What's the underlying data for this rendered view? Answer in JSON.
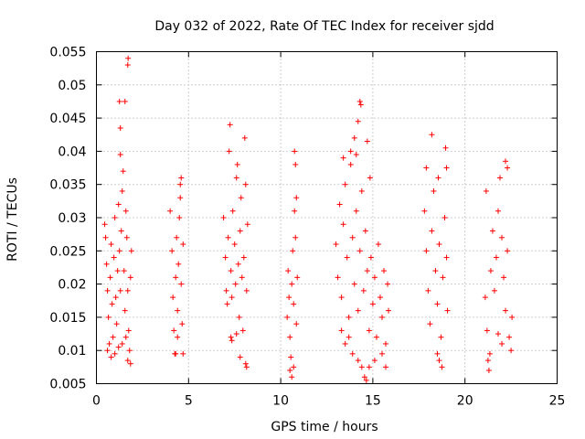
{
  "chart_data": {
    "type": "scatter",
    "title": "Day 032 of 2022, Rate Of TEC Index for receiver sjdd",
    "xlabel": "GPS time / hours",
    "ylabel": "ROTI / TECUs",
    "xlim": [
      0,
      25
    ],
    "ylim": [
      0.005,
      0.055
    ],
    "xticks": [
      0,
      5,
      10,
      15,
      20,
      25
    ],
    "yticks": [
      0.005,
      0.01,
      0.015,
      0.02,
      0.025,
      0.03,
      0.035,
      0.04,
      0.045,
      0.05,
      0.055
    ],
    "xtick_labels": [
      "0",
      "5",
      "10",
      "15",
      "20",
      "25"
    ],
    "ytick_labels": [
      "0.005",
      "0.01",
      "0.015",
      "0.02",
      "0.025",
      "0.03",
      "0.035",
      "0.04",
      "0.045",
      "0.05",
      "0.055"
    ],
    "grid": true,
    "marker": "+",
    "color": "#ff0000",
    "series": [
      {
        "name": "ROTI",
        "points": [
          [
            0.45,
            0.029
          ],
          [
            0.5,
            0.027
          ],
          [
            0.55,
            0.023
          ],
          [
            0.6,
            0.019
          ],
          [
            0.65,
            0.015
          ],
          [
            0.7,
            0.011
          ],
          [
            0.75,
            0.021
          ],
          [
            0.8,
            0.026
          ],
          [
            0.85,
            0.017
          ],
          [
            0.9,
            0.012
          ],
          [
            0.95,
            0.024
          ],
          [
            1.0,
            0.03
          ],
          [
            1.05,
            0.018
          ],
          [
            1.1,
            0.014
          ],
          [
            1.15,
            0.022
          ],
          [
            1.2,
            0.032
          ],
          [
            1.25,
            0.025
          ],
          [
            1.3,
            0.019
          ],
          [
            1.35,
            0.028
          ],
          [
            1.4,
            0.034
          ],
          [
            1.45,
            0.037
          ],
          [
            1.5,
            0.022
          ],
          [
            1.55,
            0.016
          ],
          [
            1.6,
            0.031
          ],
          [
            1.65,
            0.027
          ],
          [
            1.7,
            0.019
          ],
          [
            1.75,
            0.013
          ],
          [
            1.8,
            0.01
          ],
          [
            1.85,
            0.021
          ],
          [
            1.9,
            0.025
          ],
          [
            0.6,
            0.01
          ],
          [
            0.8,
            0.009
          ],
          [
            1.0,
            0.0095
          ],
          [
            1.2,
            0.0105
          ],
          [
            1.4,
            0.011
          ],
          [
            1.6,
            0.012
          ],
          [
            1.7,
            0.0085
          ],
          [
            1.85,
            0.008
          ],
          [
            1.25,
            0.0475
          ],
          [
            1.55,
            0.0475
          ],
          [
            1.7,
            0.053
          ],
          [
            1.72,
            0.054
          ],
          [
            1.3,
            0.0435
          ],
          [
            1.3,
            0.0395
          ],
          [
            4.0,
            0.031
          ],
          [
            4.1,
            0.025
          ],
          [
            4.15,
            0.018
          ],
          [
            4.2,
            0.013
          ],
          [
            4.25,
            0.0095
          ],
          [
            4.3,
            0.021
          ],
          [
            4.35,
            0.027
          ],
          [
            4.4,
            0.016
          ],
          [
            4.45,
            0.023
          ],
          [
            4.5,
            0.03
          ],
          [
            4.55,
            0.035
          ],
          [
            4.6,
            0.02
          ],
          [
            4.65,
            0.014
          ],
          [
            4.7,
            0.026
          ],
          [
            4.4,
            0.012
          ],
          [
            4.3,
            0.0095
          ],
          [
            4.7,
            0.0095
          ],
          [
            4.6,
            0.036
          ],
          [
            4.55,
            0.033
          ],
          [
            6.9,
            0.03
          ],
          [
            7.0,
            0.024
          ],
          [
            7.05,
            0.019
          ],
          [
            7.1,
            0.017
          ],
          [
            7.15,
            0.027
          ],
          [
            7.2,
            0.04
          ],
          [
            7.25,
            0.044
          ],
          [
            7.3,
            0.022
          ],
          [
            7.35,
            0.018
          ],
          [
            7.4,
            0.031
          ],
          [
            7.5,
            0.026
          ],
          [
            7.55,
            0.02
          ],
          [
            7.6,
            0.036
          ],
          [
            7.65,
            0.038
          ],
          [
            7.7,
            0.023
          ],
          [
            7.75,
            0.015
          ],
          [
            7.8,
            0.028
          ],
          [
            7.85,
            0.033
          ],
          [
            7.9,
            0.021
          ],
          [
            7.95,
            0.013
          ],
          [
            8.0,
            0.024
          ],
          [
            8.05,
            0.042
          ],
          [
            8.1,
            0.035
          ],
          [
            8.15,
            0.019
          ],
          [
            8.2,
            0.029
          ],
          [
            7.3,
            0.012
          ],
          [
            7.6,
            0.0125
          ],
          [
            7.8,
            0.009
          ],
          [
            8.1,
            0.008
          ],
          [
            8.15,
            0.0075
          ],
          [
            7.35,
            0.0115
          ],
          [
            10.35,
            0.015
          ],
          [
            10.4,
            0.022
          ],
          [
            10.45,
            0.018
          ],
          [
            10.5,
            0.012
          ],
          [
            10.55,
            0.009
          ],
          [
            10.6,
            0.02
          ],
          [
            10.65,
            0.025
          ],
          [
            10.7,
            0.017
          ],
          [
            10.75,
            0.031
          ],
          [
            10.8,
            0.027
          ],
          [
            10.85,
            0.014
          ],
          [
            10.9,
            0.021
          ],
          [
            10.5,
            0.007
          ],
          [
            10.6,
            0.006
          ],
          [
            10.75,
            0.04
          ],
          [
            10.8,
            0.038
          ],
          [
            10.85,
            0.033
          ],
          [
            10.7,
            0.0075
          ],
          [
            13.0,
            0.026
          ],
          [
            13.1,
            0.021
          ],
          [
            13.2,
            0.032
          ],
          [
            13.3,
            0.018
          ],
          [
            13.4,
            0.029
          ],
          [
            13.5,
            0.035
          ],
          [
            13.6,
            0.024
          ],
          [
            13.7,
            0.015
          ],
          [
            13.8,
            0.038
          ],
          [
            13.9,
            0.027
          ],
          [
            14.0,
            0.02
          ],
          [
            14.1,
            0.031
          ],
          [
            14.2,
            0.016
          ],
          [
            14.3,
            0.025
          ],
          [
            14.4,
            0.034
          ],
          [
            14.5,
            0.019
          ],
          [
            14.6,
            0.028
          ],
          [
            14.7,
            0.022
          ],
          [
            14.8,
            0.013
          ],
          [
            14.9,
            0.024
          ],
          [
            15.0,
            0.017
          ],
          [
            15.1,
            0.021
          ],
          [
            15.2,
            0.012
          ],
          [
            15.3,
            0.026
          ],
          [
            15.4,
            0.018
          ],
          [
            15.5,
            0.015
          ],
          [
            15.6,
            0.022
          ],
          [
            15.7,
            0.011
          ],
          [
            15.8,
            0.02
          ],
          [
            15.85,
            0.016
          ],
          [
            13.3,
            0.013
          ],
          [
            13.5,
            0.011
          ],
          [
            13.7,
            0.012
          ],
          [
            13.9,
            0.0095
          ],
          [
            14.2,
            0.0085
          ],
          [
            14.4,
            0.0075
          ],
          [
            14.55,
            0.006
          ],
          [
            14.65,
            0.0055
          ],
          [
            14.8,
            0.0075
          ],
          [
            15.1,
            0.0085
          ],
          [
            15.5,
            0.0095
          ],
          [
            15.7,
            0.0075
          ],
          [
            13.4,
            0.039
          ],
          [
            13.8,
            0.04
          ],
          [
            14.0,
            0.042
          ],
          [
            14.1,
            0.0395
          ],
          [
            14.3,
            0.0475
          ],
          [
            14.35,
            0.047
          ],
          [
            14.7,
            0.0415
          ],
          [
            14.85,
            0.036
          ],
          [
            14.2,
            0.0445
          ],
          [
            17.8,
            0.031
          ],
          [
            17.9,
            0.025
          ],
          [
            18.0,
            0.019
          ],
          [
            18.1,
            0.014
          ],
          [
            18.2,
            0.028
          ],
          [
            18.3,
            0.034
          ],
          [
            18.4,
            0.022
          ],
          [
            18.5,
            0.017
          ],
          [
            18.6,
            0.026
          ],
          [
            18.7,
            0.012
          ],
          [
            18.8,
            0.021
          ],
          [
            18.9,
            0.03
          ],
          [
            19.0,
            0.024
          ],
          [
            19.05,
            0.016
          ],
          [
            18.5,
            0.0095
          ],
          [
            18.6,
            0.0085
          ],
          [
            18.75,
            0.0075
          ],
          [
            18.2,
            0.0425
          ],
          [
            18.95,
            0.0405
          ],
          [
            19.0,
            0.0375
          ],
          [
            17.9,
            0.0375
          ],
          [
            18.55,
            0.036
          ],
          [
            21.1,
            0.018
          ],
          [
            21.2,
            0.013
          ],
          [
            21.25,
            0.0085
          ],
          [
            21.3,
            0.007
          ],
          [
            21.35,
            0.0095
          ],
          [
            21.4,
            0.022
          ],
          [
            21.5,
            0.028
          ],
          [
            21.6,
            0.019
          ],
          [
            21.7,
            0.024
          ],
          [
            21.8,
            0.031
          ],
          [
            21.9,
            0.036
          ],
          [
            22.0,
            0.027
          ],
          [
            22.1,
            0.021
          ],
          [
            22.2,
            0.016
          ],
          [
            22.3,
            0.025
          ],
          [
            22.4,
            0.012
          ],
          [
            22.5,
            0.01
          ],
          [
            22.55,
            0.015
          ],
          [
            22.2,
            0.0385
          ],
          [
            22.3,
            0.0375
          ],
          [
            21.15,
            0.034
          ],
          [
            21.8,
            0.0125
          ],
          [
            22.0,
            0.011
          ]
        ]
      }
    ]
  }
}
